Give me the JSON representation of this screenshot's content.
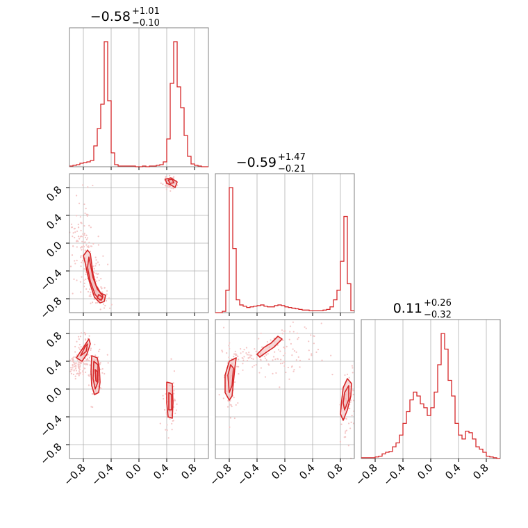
{
  "chart_data": {
    "type": "corner",
    "grid": true,
    "colors": {
      "main": "#d62728",
      "fill": "#f0b8b8",
      "points": "#f4c5c5"
    },
    "tick_labels": [
      "−0.8",
      "−0.4",
      "0.0",
      "0.4",
      "0.8"
    ],
    "tick_values": [
      -0.8,
      -0.4,
      0.0,
      0.4,
      0.8
    ],
    "range": [
      -1.0,
      1.0
    ],
    "titles": [
      {
        "main": "−0.58",
        "plus": "+1.01",
        "minus": "−0.10"
      },
      {
        "main": "−0.59",
        "plus": "+1.47",
        "minus": "−0.21"
      },
      {
        "main": "0.11",
        "plus": "+0.26",
        "minus": "−0.32"
      }
    ],
    "histograms": [
      {
        "param": 0,
        "bins": [
          -1.0,
          -0.95,
          -0.9,
          -0.85,
          -0.8,
          -0.75,
          -0.7,
          -0.65,
          -0.6,
          -0.55,
          -0.5,
          -0.45,
          -0.4,
          -0.35,
          -0.3,
          -0.25,
          -0.2,
          -0.15,
          -0.1,
          -0.05,
          0.0,
          0.05,
          0.1,
          0.15,
          0.2,
          0.25,
          0.3,
          0.35,
          0.4,
          0.45,
          0.5,
          0.55,
          0.6,
          0.65,
          0.7,
          0.75,
          0.8,
          0.85,
          0.9,
          0.95
        ],
        "counts": [
          1,
          2,
          3,
          5,
          6,
          7,
          9,
          30,
          55,
          90,
          180,
          95,
          20,
          3,
          1,
          1,
          1,
          1,
          1,
          0,
          0,
          1,
          0,
          1,
          1,
          2,
          3,
          7,
          40,
          120,
          180,
          115,
          85,
          45,
          15,
          4,
          2,
          1,
          0,
          0
        ]
      },
      {
        "param": 1,
        "bins": [
          -1.0,
          -0.95,
          -0.9,
          -0.85,
          -0.8,
          -0.75,
          -0.7,
          -0.65,
          -0.6,
          -0.55,
          -0.5,
          -0.45,
          -0.4,
          -0.35,
          -0.3,
          -0.25,
          -0.2,
          -0.15,
          -0.1,
          -0.05,
          0.0,
          0.05,
          0.1,
          0.15,
          0.2,
          0.25,
          0.3,
          0.35,
          0.4,
          0.45,
          0.5,
          0.55,
          0.6,
          0.65,
          0.7,
          0.75,
          0.8,
          0.85,
          0.9,
          0.95
        ],
        "counts": [
          0,
          0,
          2,
          35,
          195,
          100,
          20,
          12,
          10,
          8,
          9,
          10,
          11,
          12,
          10,
          9,
          9,
          11,
          12,
          11,
          9,
          8,
          7,
          6,
          5,
          4,
          4,
          3,
          3,
          3,
          3,
          4,
          5,
          9,
          20,
          35,
          80,
          150,
          45,
          3
        ]
      },
      {
        "param": 2,
        "bins": [
          -1.0,
          -0.95,
          -0.9,
          -0.85,
          -0.8,
          -0.75,
          -0.7,
          -0.65,
          -0.6,
          -0.55,
          -0.5,
          -0.45,
          -0.4,
          -0.35,
          -0.3,
          -0.25,
          -0.2,
          -0.15,
          -0.1,
          -0.05,
          0.0,
          0.05,
          0.1,
          0.15,
          0.2,
          0.25,
          0.3,
          0.35,
          0.4,
          0.45,
          0.5,
          0.55,
          0.6,
          0.65,
          0.7,
          0.75,
          0.8,
          0.85,
          0.9,
          0.95
        ],
        "counts": [
          1,
          1,
          1,
          1,
          2,
          3,
          6,
          8,
          9,
          15,
          20,
          30,
          45,
          60,
          75,
          85,
          80,
          70,
          65,
          55,
          65,
          85,
          120,
          160,
          140,
          100,
          80,
          45,
          30,
          25,
          35,
          33,
          25,
          15,
          12,
          8,
          3,
          2,
          1,
          0
        ]
      }
    ],
    "scatter_panels": [
      {
        "x_param": 0,
        "y_param": 1,
        "clusters": [
          {
            "cx": -0.58,
            "cy": -0.7,
            "sx": 0.05,
            "sy": 0.12
          },
          {
            "cx": -0.72,
            "cy": -0.35,
            "sx": 0.05,
            "sy": 0.12
          },
          {
            "cx": 0.45,
            "cy": 0.88,
            "sx": 0.03,
            "sy": 0.03
          },
          {
            "cx": -0.85,
            "cy": 0.1,
            "sx": 0.06,
            "sy": 0.2
          }
        ],
        "contours": [
          [
            [
              -0.74,
              -0.1
            ],
            [
              -0.7,
              -0.15
            ],
            [
              -0.68,
              -0.3
            ],
            [
              -0.66,
              -0.45
            ],
            [
              -0.62,
              -0.6
            ],
            [
              -0.55,
              -0.72
            ],
            [
              -0.48,
              -0.75
            ],
            [
              -0.5,
              -0.84
            ],
            [
              -0.56,
              -0.86
            ],
            [
              -0.64,
              -0.78
            ],
            [
              -0.7,
              -0.6
            ],
            [
              -0.74,
              -0.45
            ],
            [
              -0.77,
              -0.3
            ],
            [
              -0.8,
              -0.18
            ]
          ],
          [
            [
              -0.72,
              -0.2
            ],
            [
              -0.7,
              -0.3
            ],
            [
              -0.66,
              -0.5
            ],
            [
              -0.6,
              -0.66
            ],
            [
              -0.52,
              -0.76
            ],
            [
              -0.56,
              -0.82
            ],
            [
              -0.63,
              -0.74
            ],
            [
              -0.7,
              -0.55
            ],
            [
              -0.74,
              -0.35
            ]
          ],
          [
            [
              -0.58,
              -0.74
            ],
            [
              -0.52,
              -0.78
            ],
            [
              -0.54,
              -0.82
            ],
            [
              -0.6,
              -0.79
            ]
          ],
          [
            [
              0.38,
              0.92
            ],
            [
              0.46,
              0.94
            ],
            [
              0.55,
              0.88
            ],
            [
              0.52,
              0.8
            ],
            [
              0.46,
              0.84
            ],
            [
              0.4,
              0.86
            ]
          ],
          [
            [
              0.42,
              0.91
            ],
            [
              0.48,
              0.92
            ],
            [
              0.5,
              0.87
            ],
            [
              0.45,
              0.86
            ]
          ]
        ]
      },
      {
        "x_param": 0,
        "y_param": 2,
        "clusters": [
          {
            "cx": -0.62,
            "cy": 0.2,
            "sx": 0.04,
            "sy": 0.12
          },
          {
            "cx": -0.78,
            "cy": 0.52,
            "sx": 0.07,
            "sy": 0.1
          },
          {
            "cx": 0.45,
            "cy": -0.2,
            "sx": 0.03,
            "sy": 0.12
          },
          {
            "cx": -0.9,
            "cy": 0.35,
            "sx": 0.05,
            "sy": 0.05
          }
        ],
        "contours": [
          [
            [
              -0.68,
              0.48
            ],
            [
              -0.6,
              0.45
            ],
            [
              -0.57,
              0.3
            ],
            [
              -0.56,
              0.1
            ],
            [
              -0.58,
              -0.05
            ],
            [
              -0.64,
              -0.08
            ],
            [
              -0.68,
              0.05
            ],
            [
              -0.69,
              0.25
            ]
          ],
          [
            [
              -0.65,
              0.4
            ],
            [
              -0.59,
              0.35
            ],
            [
              -0.59,
              0.1
            ],
            [
              -0.63,
              0.0
            ],
            [
              -0.66,
              0.15
            ]
          ],
          [
            [
              -0.63,
              0.28
            ],
            [
              -0.6,
              0.25
            ],
            [
              -0.6,
              0.1
            ],
            [
              -0.62,
              0.12
            ]
          ],
          [
            [
              -0.9,
              0.45
            ],
            [
              -0.8,
              0.6
            ],
            [
              -0.72,
              0.72
            ],
            [
              -0.7,
              0.65
            ],
            [
              -0.75,
              0.5
            ],
            [
              -0.82,
              0.4
            ]
          ],
          [
            [
              -0.84,
              0.48
            ],
            [
              -0.78,
              0.6
            ],
            [
              -0.74,
              0.65
            ],
            [
              -0.76,
              0.54
            ]
          ],
          [
            [
              0.4,
              0.1
            ],
            [
              0.48,
              0.08
            ],
            [
              0.49,
              -0.2
            ],
            [
              0.48,
              -0.42
            ],
            [
              0.42,
              -0.4
            ],
            [
              0.4,
              -0.2
            ]
          ],
          [
            [
              0.43,
              -0.05
            ],
            [
              0.47,
              -0.08
            ],
            [
              0.47,
              -0.3
            ],
            [
              0.43,
              -0.3
            ]
          ]
        ]
      },
      {
        "x_param": 1,
        "y_param": 2,
        "clusters": [
          {
            "cx": -0.78,
            "cy": 0.1,
            "sx": 0.04,
            "sy": 0.2
          },
          {
            "cx": -0.4,
            "cy": 0.5,
            "sx": 0.15,
            "sy": 0.06
          },
          {
            "cx": 0.9,
            "cy": -0.2,
            "sx": 0.04,
            "sy": 0.2
          },
          {
            "cx": 0.0,
            "cy": 0.55,
            "sx": 0.2,
            "sy": 0.15
          }
        ],
        "contours": [
          [
            [
              -0.86,
              0.2
            ],
            [
              -0.8,
              0.4
            ],
            [
              -0.7,
              0.45
            ],
            [
              -0.72,
              0.3
            ],
            [
              -0.74,
              0.1
            ],
            [
              -0.76,
              -0.1
            ],
            [
              -0.8,
              -0.16
            ],
            [
              -0.86,
              -0.05
            ]
          ],
          [
            [
              -0.82,
              0.2
            ],
            [
              -0.78,
              0.35
            ],
            [
              -0.74,
              0.3
            ],
            [
              -0.76,
              0.05
            ],
            [
              -0.8,
              -0.05
            ]
          ],
          [
            [
              -0.4,
              0.5
            ],
            [
              -0.3,
              0.6
            ],
            [
              -0.2,
              0.66
            ],
            [
              -0.1,
              0.76
            ],
            [
              -0.04,
              0.72
            ],
            [
              -0.16,
              0.6
            ],
            [
              -0.28,
              0.52
            ],
            [
              -0.36,
              0.46
            ]
          ],
          [
            [
              0.84,
              0.02
            ],
            [
              0.9,
              0.15
            ],
            [
              0.96,
              0.08
            ],
            [
              0.95,
              -0.1
            ],
            [
              0.9,
              -0.3
            ],
            [
              0.84,
              -0.45
            ],
            [
              0.8,
              -0.36
            ],
            [
              0.82,
              -0.15
            ]
          ],
          [
            [
              0.86,
              -0.05
            ],
            [
              0.92,
              0.05
            ],
            [
              0.92,
              -0.15
            ],
            [
              0.86,
              -0.3
            ],
            [
              0.84,
              -0.2
            ]
          ]
        ]
      }
    ]
  }
}
